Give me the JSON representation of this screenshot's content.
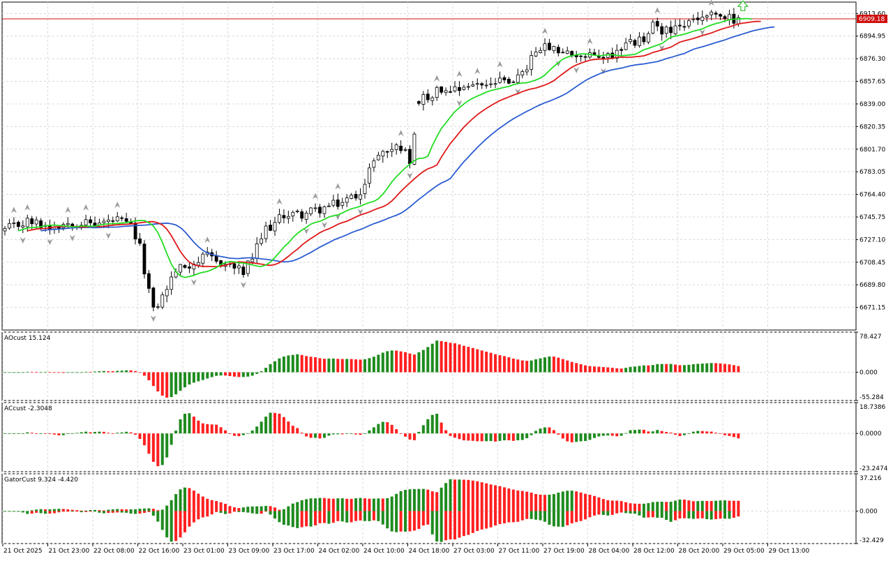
{
  "chart_data": [
    {
      "type": "candlestick",
      "pane": "price",
      "ylim": [
        6652.5,
        6923.0
      ],
      "y_ticks": [
        "6913.60",
        "6894.95",
        "6876.30",
        "6857.65",
        "6839.00",
        "6820.35",
        "6801.70",
        "6783.05",
        "6764.40",
        "6745.75",
        "6727.10",
        "6708.45",
        "6689.80",
        "6671.15"
      ],
      "current_price": {
        "label": "6909.18",
        "value": 6909.18,
        "color": "#d01010"
      },
      "anchors": [
        [
          0,
          6735
        ],
        [
          5,
          6742
        ],
        [
          10,
          6738
        ],
        [
          15,
          6742
        ],
        [
          20,
          6740
        ],
        [
          25,
          6743
        ],
        [
          28,
          6738
        ],
        [
          30,
          6720
        ],
        [
          33,
          6668
        ],
        [
          35,
          6680
        ],
        [
          38,
          6702
        ],
        [
          42,
          6708
        ],
        [
          45,
          6713
        ],
        [
          47,
          6709
        ],
        [
          50,
          6706
        ],
        [
          53,
          6700
        ],
        [
          55,
          6712
        ],
        [
          58,
          6736
        ],
        [
          60,
          6740
        ],
        [
          62,
          6748
        ],
        [
          66,
          6748
        ],
        [
          70,
          6752
        ],
        [
          75,
          6758
        ],
        [
          78,
          6764
        ],
        [
          80,
          6772
        ],
        [
          82,
          6795
        ],
        [
          86,
          6802
        ],
        [
          88,
          6804
        ],
        [
          90,
          6793
        ],
        [
          92,
          6842
        ],
        [
          96,
          6850
        ],
        [
          100,
          6853
        ],
        [
          104,
          6855
        ],
        [
          110,
          6857
        ],
        [
          115,
          6862
        ],
        [
          117,
          6877
        ],
        [
          120,
          6885
        ],
        [
          125,
          6880
        ],
        [
          130,
          6878
        ],
        [
          135,
          6880
        ],
        [
          138,
          6888
        ],
        [
          142,
          6892
        ],
        [
          144,
          6903
        ],
        [
          148,
          6898
        ],
        [
          152,
          6906
        ],
        [
          156,
          6912
        ],
        [
          160,
          6910
        ],
        [
          163,
          6908
        ]
      ],
      "gap_after_index": 91,
      "up_arrow_index": 164,
      "lines": [
        {
          "name": "",
          "color": "#2a5cd0",
          "period": 13,
          "shift": 8
        },
        {
          "name": "",
          "color": "#e01818",
          "period": 8,
          "shift": 5
        },
        {
          "name": "",
          "color": "#22dd22",
          "period": 5,
          "shift": 3
        }
      ],
      "colors": {
        "up_body": "#ffffff",
        "down_body": "#000000",
        "wick": "#000000",
        "fractal": "#9a9a9a",
        "arrow": "#30c030"
      }
    },
    {
      "type": "bar",
      "pane": "AO",
      "title": "AOcust 15.124",
      "ylim": [
        -55.284,
        78.427
      ],
      "y_ticks": [
        "78.427",
        "0.000",
        "-55.284"
      ],
      "derived_from": "price",
      "colors": {
        "up": "#1e8b1e",
        "down": "#ff2020"
      }
    },
    {
      "type": "bar",
      "pane": "AC",
      "title": "ACcust -2.3048",
      "ylim": [
        -23.2474,
        18.7386
      ],
      "y_ticks": [
        "18.7386",
        "0.0000",
        "-23.2474"
      ],
      "derived_from": "AO",
      "colors": {
        "up": "#1e8b1e",
        "down": "#ff2020"
      }
    },
    {
      "type": "bar",
      "pane": "Gator",
      "title": "GatorCust 9.324 -4.420",
      "ylim": [
        -32.429,
        37.216
      ],
      "y_ticks": [
        "37.216",
        "0.000",
        "-32.429"
      ],
      "derived_from": "alligator",
      "colors": {
        "up": "#1e8b1e",
        "down": "#ff2020"
      }
    }
  ],
  "x_axis": {
    "labels": [
      "21 Oct 2025",
      "21 Oct 23:00",
      "22 Oct 08:00",
      "22 Oct 16:00",
      "23 Oct 01:00",
      "23 Oct 09:00",
      "23 Oct 17:00",
      "24 Oct 02:00",
      "24 Oct 10:00",
      "24 Oct 18:00",
      "27 Oct 03:00",
      "27 Oct 11:00",
      "27 Oct 19:00",
      "28 Oct 04:00",
      "28 Oct 12:00",
      "28 Oct 20:00",
      "29 Oct 05:00",
      "29 Oct 13:00"
    ],
    "bars_per_label": 10,
    "total_bars": 164
  },
  "style": {
    "background": "#ffffff",
    "grid": "#d8d8d8",
    "frame": "#000000"
  }
}
